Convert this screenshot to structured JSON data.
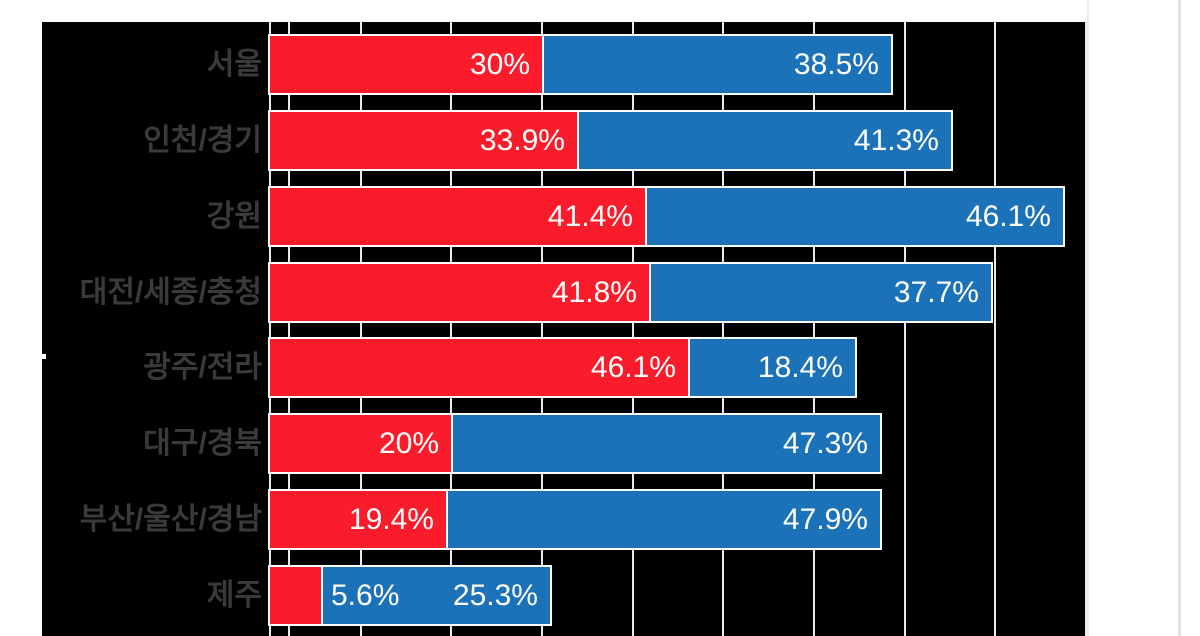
{
  "chart_data": {
    "type": "bar",
    "orientation": "horizontal",
    "stacked": true,
    "title": "",
    "xlabel": "",
    "ylabel": "",
    "legend": null,
    "grid": true,
    "xlim": [
      0,
      90
    ],
    "gridline_step": 10,
    "categories": [
      "서울",
      "인천/경기",
      "강원",
      "대전/세종/충청",
      "광주/전라",
      "대구/경북",
      "부산/울산/경남",
      "제주"
    ],
    "series": [
      {
        "name": "red-series",
        "color": "#fb1c2b",
        "values": [
          30,
          33.9,
          41.4,
          41.8,
          46.1,
          20,
          19.4,
          5.6
        ],
        "labels": [
          "30%",
          "33.9%",
          "41.4%",
          "41.8%",
          "46.1%",
          "20%",
          "19.4%",
          "5.6%"
        ]
      },
      {
        "name": "blue-series",
        "color": "#1b72b8",
        "values": [
          38.5,
          41.3,
          46.1,
          37.7,
          18.4,
          47.3,
          47.9,
          25.3
        ],
        "labels": [
          "38.5%",
          "41.3%",
          "46.1%",
          "37.7%",
          "18.4%",
          "47.3%",
          "47.9%",
          "25.3%"
        ]
      }
    ]
  },
  "colors": {
    "plot_background": "#000000",
    "page_background": "#ffffff",
    "gridline": "#e8ebf4",
    "bar_outline": "#ffffff",
    "category_label": "#3a3a3a",
    "value_label": "#ffffff",
    "red": "#fb1c2b",
    "blue": "#1b72b8"
  }
}
